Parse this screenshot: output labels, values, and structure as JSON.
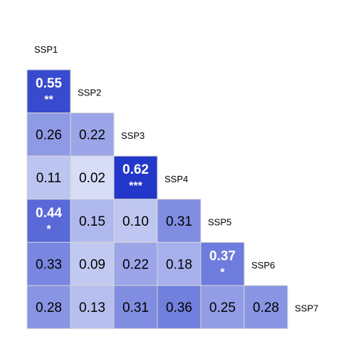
{
  "chart_data": {
    "type": "heatmap",
    "labels": [
      "SSP1",
      "SSP2",
      "SSP3",
      "SSP4",
      "SSP5",
      "SSP6",
      "SSP7"
    ],
    "rows": [
      [
        {
          "value": "0.55",
          "stars": "**"
        }
      ],
      [
        {
          "value": "0.26",
          "stars": ""
        },
        {
          "value": "0.22",
          "stars": ""
        }
      ],
      [
        {
          "value": "0.11",
          "stars": ""
        },
        {
          "value": "0.02",
          "stars": ""
        },
        {
          "value": "0.62",
          "stars": "***"
        }
      ],
      [
        {
          "value": "0.44",
          "stars": "*"
        },
        {
          "value": "0.15",
          "stars": ""
        },
        {
          "value": "0.10",
          "stars": ""
        },
        {
          "value": "0.31",
          "stars": ""
        }
      ],
      [
        {
          "value": "0.33",
          "stars": ""
        },
        {
          "value": "0.09",
          "stars": ""
        },
        {
          "value": "0.22",
          "stars": ""
        },
        {
          "value": "0.18",
          "stars": ""
        },
        {
          "value": "0.37",
          "stars": "*"
        }
      ],
      [
        {
          "value": "0.28",
          "stars": ""
        },
        {
          "value": "0.13",
          "stars": ""
        },
        {
          "value": "0.31",
          "stars": ""
        },
        {
          "value": "0.36",
          "stars": ""
        },
        {
          "value": "0.25",
          "stars": ""
        },
        {
          "value": "0.28",
          "stars": ""
        }
      ]
    ],
    "colors": {
      "high": "#1a2fc8",
      "low": "#dde2f8",
      "grid": "#d6d6d6",
      "text_dark": "#000000",
      "text_light": "#ffffff"
    }
  }
}
